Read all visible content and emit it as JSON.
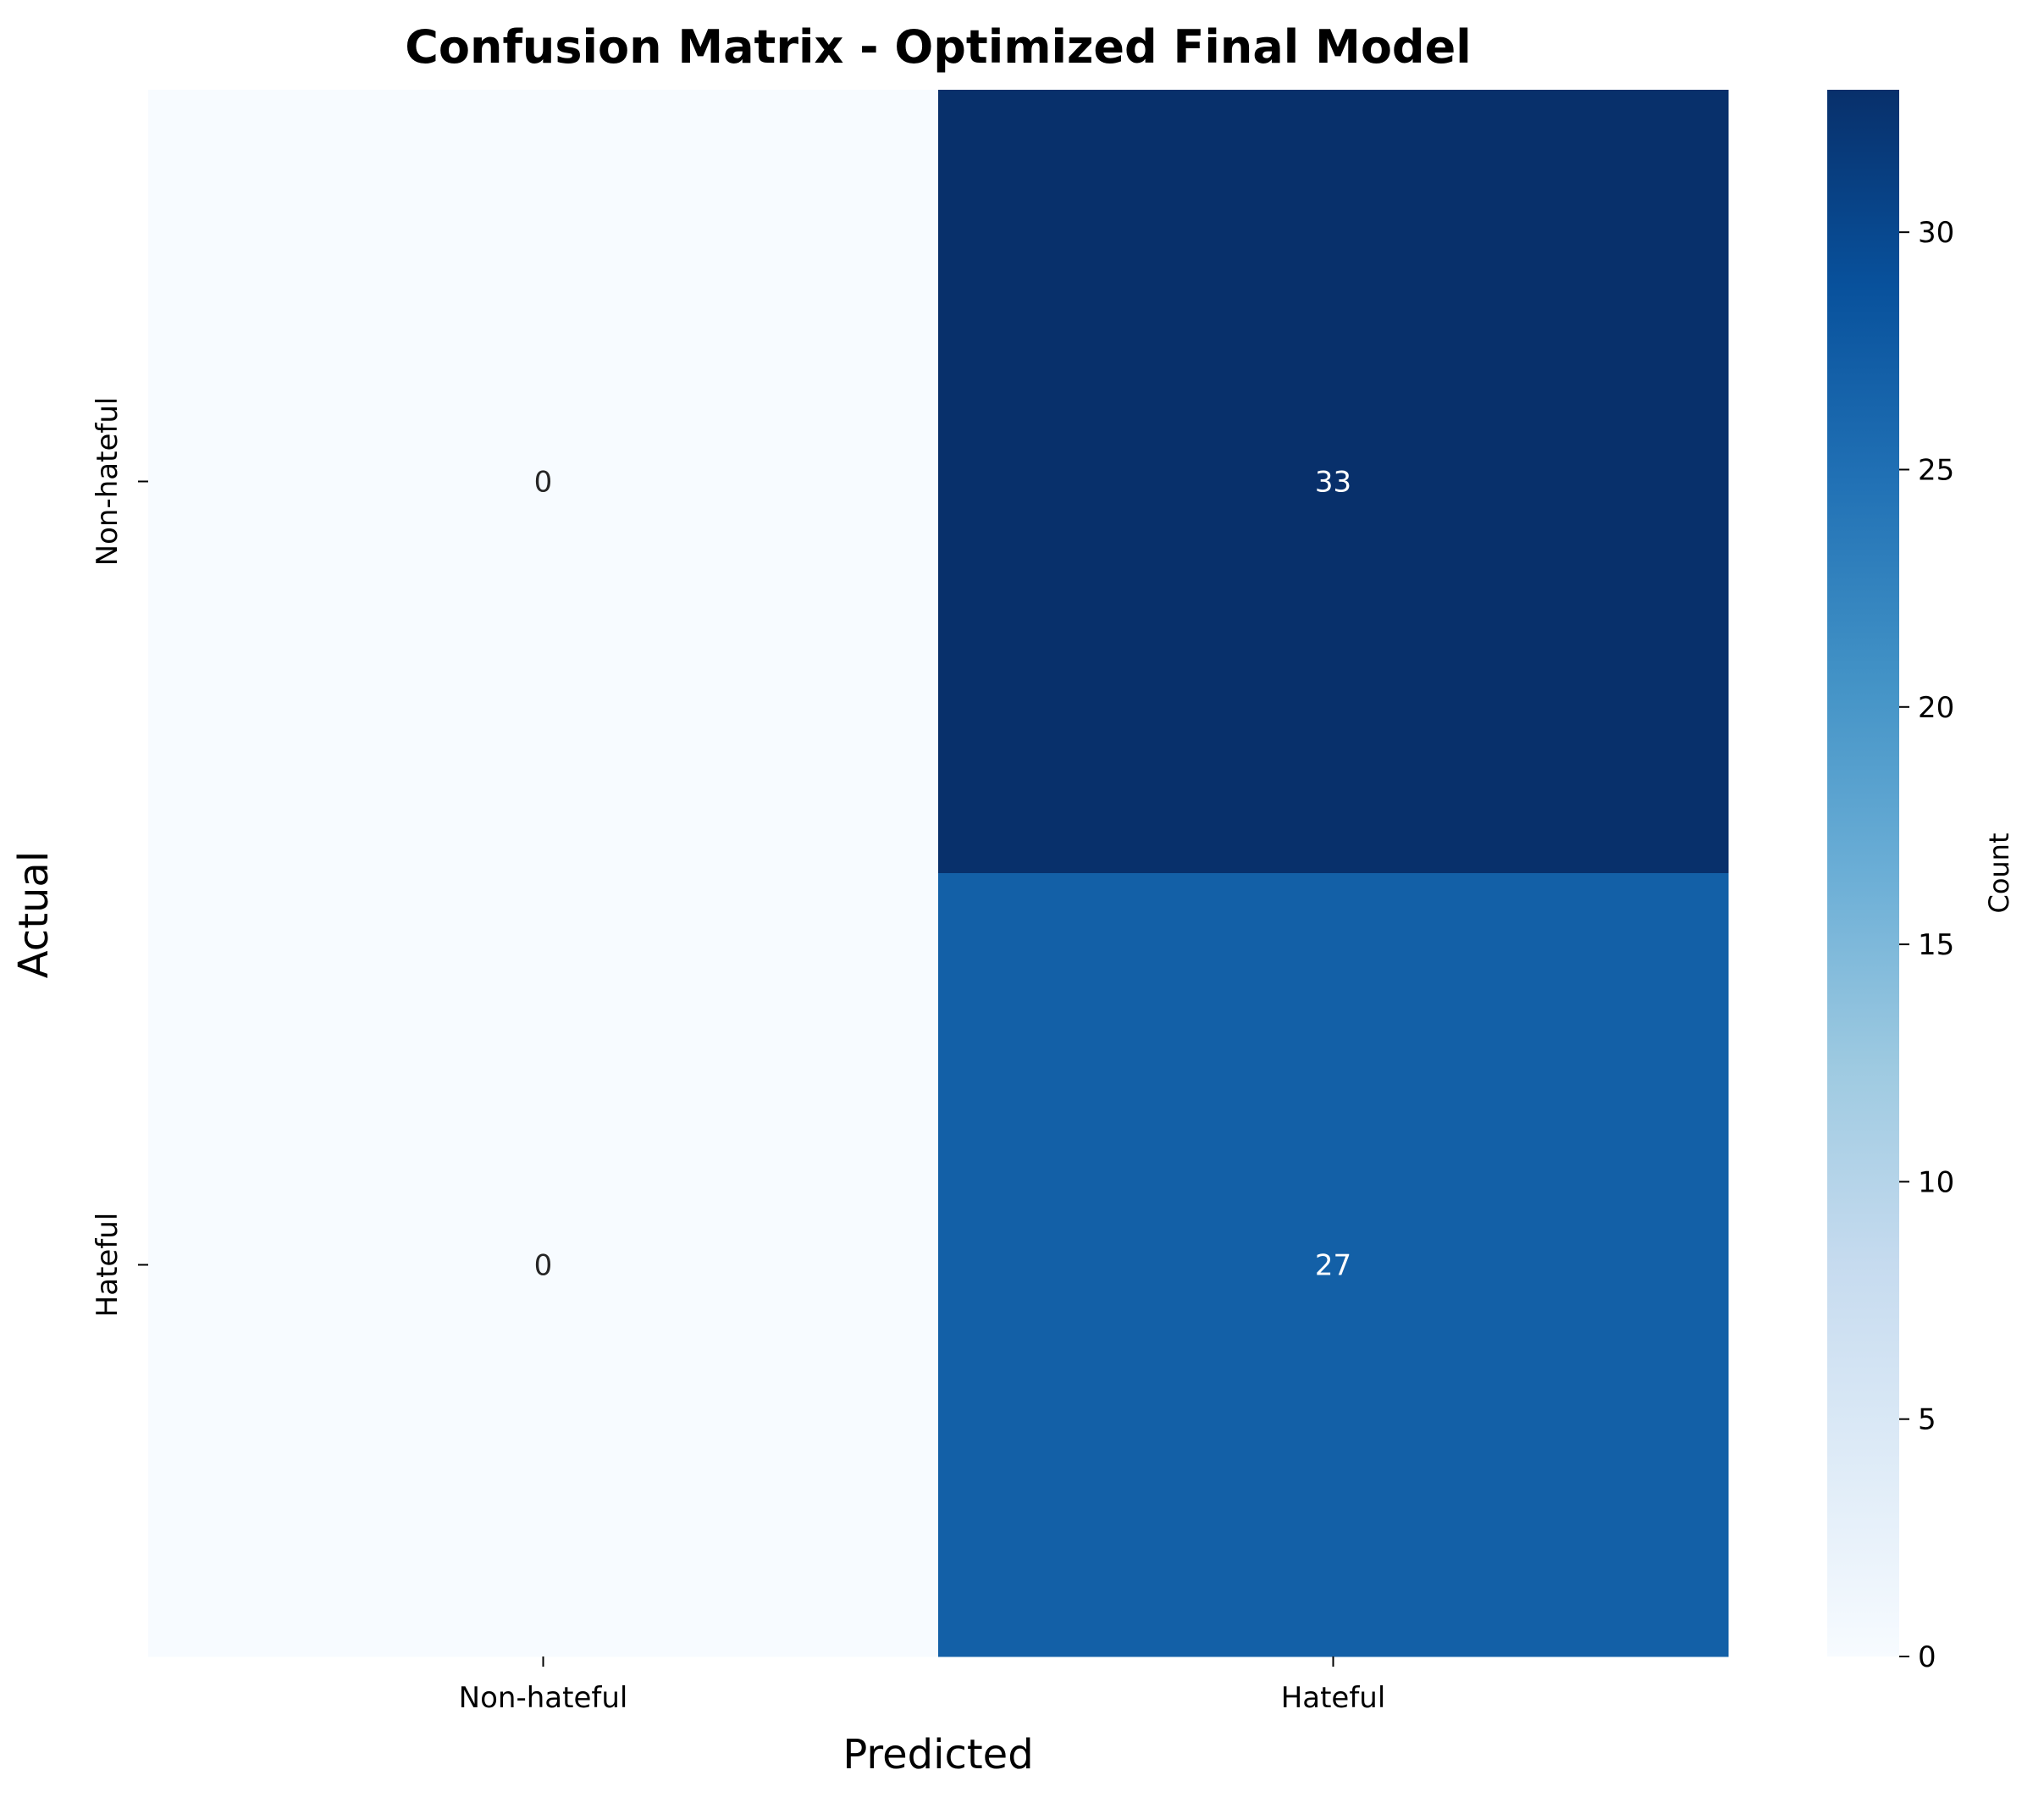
{
  "chart_data": {
    "type": "heatmap",
    "title": "Confusion Matrix - Optimized Final Model",
    "xlabel": "Predicted",
    "ylabel": "Actual",
    "x_categories": [
      "Non-hateful",
      "Hateful"
    ],
    "y_categories": [
      "Non-hateful",
      "Hateful"
    ],
    "values": [
      [
        0,
        33
      ],
      [
        0,
        27
      ]
    ],
    "colormap": "Blues",
    "colorbar": {
      "label": "Count",
      "range": [
        0,
        33
      ],
      "ticks": [
        0,
        5,
        10,
        15,
        20,
        25,
        30
      ]
    },
    "colors": {
      "cmap_stops": [
        "#f7fbff",
        "#deebf7",
        "#c6dbef",
        "#9ecae1",
        "#6baed6",
        "#4292c6",
        "#2171b5",
        "#08519c",
        "#08306b"
      ],
      "text_light": "#ffffff",
      "text_dark": "#262626"
    }
  }
}
